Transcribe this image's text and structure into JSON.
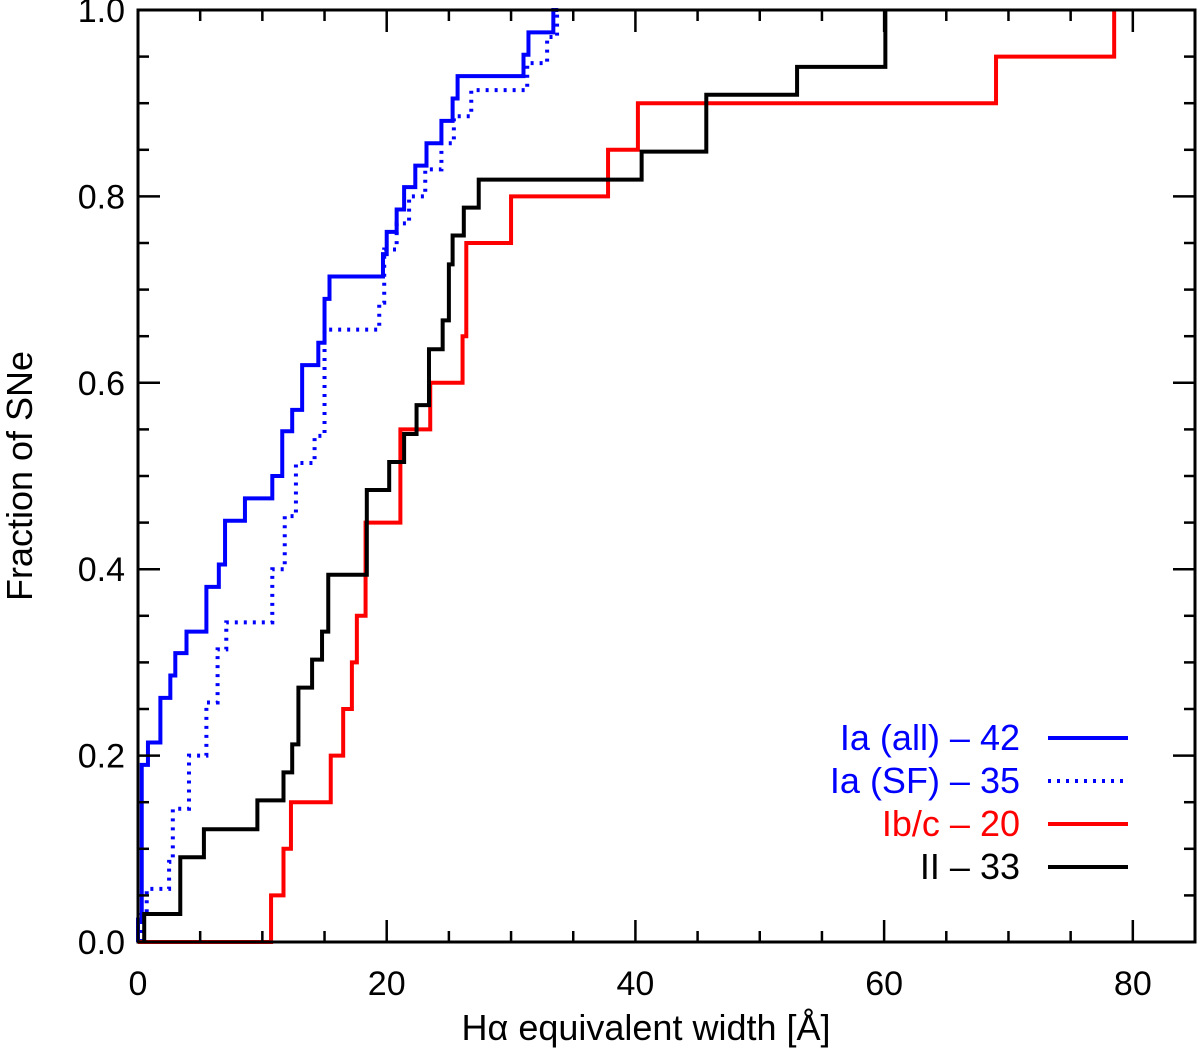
{
  "chart_data": {
    "type": "line",
    "subtype": "cumulative-step",
    "xlabel": "Hα equivalent width [Å]",
    "ylabel": "Fraction of SNe",
    "xlim": [
      0,
      85
    ],
    "ylim": [
      0,
      1.0
    ],
    "xticks": [
      0,
      20,
      40,
      60,
      80
    ],
    "xtick_labels": [
      "0",
      "20",
      "40",
      "60",
      "80"
    ],
    "yticks": [
      0.0,
      0.2,
      0.4,
      0.6,
      0.8,
      1.0
    ],
    "ytick_labels": [
      "0.0",
      "0.2",
      "0.4",
      "0.6",
      "0.8",
      "1.0"
    ],
    "grid": false,
    "legend_position": "bottom-right",
    "series": [
      {
        "name": "Ia (all) – 42",
        "color": "#0000ff",
        "dash": "solid",
        "x": [
          0,
          0.3,
          0.8,
          1.8,
          2.6,
          3.0,
          3.9,
          5.5,
          6.5,
          7.0,
          8.6,
          10.8,
          11.6,
          12.4,
          13.2,
          14.5,
          15.0,
          15.4,
          19.7,
          20.0,
          20.8,
          21.4,
          22.3,
          23.2,
          24.4,
          25.3,
          25.7,
          27.4,
          31.0,
          31.4,
          33.4,
          33.8
        ],
        "y": [
          0.024,
          0.19,
          0.214,
          0.262,
          0.286,
          0.31,
          0.333,
          0.381,
          0.405,
          0.452,
          0.476,
          0.5,
          0.548,
          0.571,
          0.619,
          0.643,
          0.69,
          0.714,
          0.738,
          0.762,
          0.786,
          0.81,
          0.833,
          0.857,
          0.881,
          0.905,
          0.929,
          0.929,
          0.952,
          0.976,
          1.0,
          1.0
        ]
      },
      {
        "name": "Ia (SF) – 35",
        "color": "#0000ff",
        "dash": "dotted",
        "x": [
          0.2,
          0.7,
          2.5,
          2.8,
          4.1,
          5.5,
          6.4,
          7.1,
          10.8,
          11.8,
          12.7,
          14.2,
          15.0,
          19.4,
          19.8,
          20.8,
          21.8,
          23.1,
          24.4,
          25.4,
          26.8,
          31.3,
          32.9,
          33.7
        ],
        "y": [
          0.029,
          0.057,
          0.086,
          0.143,
          0.2,
          0.257,
          0.314,
          0.343,
          0.4,
          0.457,
          0.514,
          0.543,
          0.657,
          0.686,
          0.743,
          0.771,
          0.8,
          0.829,
          0.857,
          0.886,
          0.914,
          0.943,
          0.971,
          1.0
        ]
      },
      {
        "name": "Ib/c – 20",
        "color": "#ff0000",
        "dash": "solid",
        "x": [
          0,
          10.7,
          11.7,
          12.3,
          15.5,
          16.5,
          17.2,
          17.6,
          18.3,
          21.1,
          23.5,
          26.1,
          26.4,
          30.0,
          37.8,
          40.2,
          45.0,
          69.0,
          78.5
        ],
        "y": [
          0,
          0.05,
          0.1,
          0.15,
          0.2,
          0.25,
          0.3,
          0.35,
          0.45,
          0.55,
          0.6,
          0.65,
          0.75,
          0.8,
          0.85,
          0.9,
          0.9,
          0.95,
          1.0
        ]
      },
      {
        "name": "II – 33",
        "color": "#000000",
        "dash": "solid",
        "x": [
          0.5,
          3.4,
          5.3,
          9.6,
          11.7,
          12.4,
          12.9,
          14.0,
          14.8,
          15.3,
          18.4,
          20.2,
          21.4,
          22.4,
          23.4,
          24.5,
          25.0,
          25.3,
          26.2,
          27.4,
          40.5,
          45.7,
          53.0,
          60.1
        ],
        "y": [
          0.03,
          0.091,
          0.121,
          0.152,
          0.182,
          0.212,
          0.273,
          0.303,
          0.333,
          0.394,
          0.485,
          0.515,
          0.545,
          0.576,
          0.636,
          0.667,
          0.727,
          0.758,
          0.788,
          0.818,
          0.848,
          0.909,
          0.939,
          1.0
        ]
      }
    ]
  }
}
